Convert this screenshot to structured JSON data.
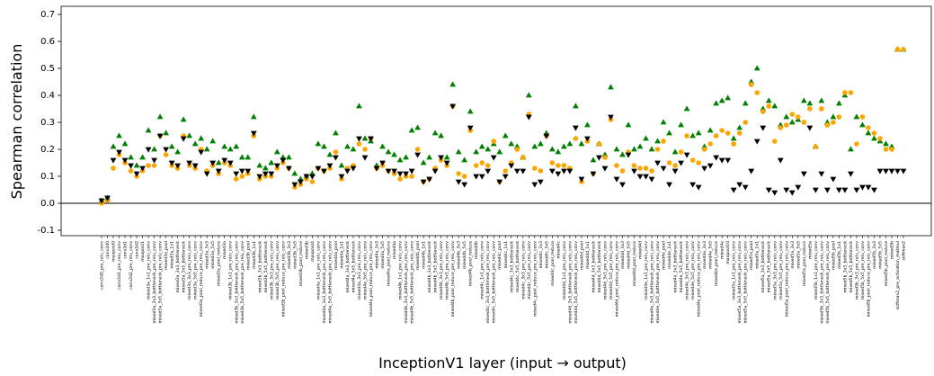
{
  "chart_data": {
    "type": "scatter",
    "xlabel": "InceptionV1 layer (input → output)",
    "ylabel": "Spearman correlation",
    "ylim": [
      -0.12,
      0.73
    ],
    "yticks": [
      -0.1,
      {
        "value": 0,
        "label": "0.0"
      },
      0.1,
      0.2,
      0.3,
      0.4,
      0.5,
      0.6,
      0.7
    ],
    "hline": 0,
    "categories": [
      "conv2d0_pre_relu_conv",
      "conv2d0",
      "maxpool0",
      "conv2d1_pre_relu_conv",
      "conv2d1",
      "conv2d2_pre_relu_conv",
      "conv2d2",
      "maxpool1",
      "mixed3a_1x1_pre_relu_conv",
      "mixed3a_3x3_bottleneck_pre_relu_conv",
      "mixed3a_5x5_bottleneck_pre_relu_conv",
      "mixed3a_pool",
      "mixed3a_1x1",
      "mixed3a_3x3_bottleneck",
      "mixed3a_5x5_bottleneck",
      "mixed3a_3x3_pre_relu_conv",
      "mixed3a_5x5_pre_relu_conv",
      "mixed3a_pool_reduce_pre_relu_conv",
      "mixed3a_3x3",
      "mixed3a_5x5",
      "mixed3a_pool_reduce",
      "mixed3a",
      "mixed3b_1x1_pre_relu_conv",
      "mixed3b_3x3_bottleneck_pre_relu_conv",
      "mixed3b_5x5_bottleneck_pre_relu_conv",
      "mixed3b_pool",
      "mixed3b_1x1",
      "mixed3b_3x3_bottleneck",
      "mixed3b_5x5_bottleneck",
      "mixed3b_3x3_pre_relu_conv",
      "mixed3b_5x5_pre_relu_conv",
      "mixed3b_pool_reduce_pre_relu_conv",
      "mixed3b_3x3",
      "mixed3b_5x5",
      "mixed3b_pool_reduce",
      "mixed3b",
      "maxpool4",
      "mixed4a_1x1_pre_relu_conv",
      "mixed4a_3x3_bottleneck_pre_relu_conv",
      "mixed4a_5x5_bottleneck_pre_relu_conv",
      "mixed4a_pool",
      "mixed4a_1x1",
      "mixed4a_3x3_bottleneck",
      "mixed4a_5x5_bottleneck",
      "mixed4a_3x3_pre_relu_conv",
      "mixed4a_5x5_pre_relu_conv",
      "mixed4a_pool_reduce_pre_relu_conv",
      "mixed4a_3x3",
      "mixed4a_5x5",
      "mixed4a_pool_reduce",
      "mixed4a",
      "mixed4b_1x1_pre_relu_conv",
      "mixed4b_3x3_bottleneck_pre_relu_conv",
      "mixed4b_5x5_bottleneck_pre_relu_conv",
      "mixed4b_pool",
      "mixed4b_1x1",
      "mixed4b_3x3_bottleneck",
      "mixed4b_5x5_bottleneck",
      "mixed4b_3x3_pre_relu_conv",
      "mixed4b_5x5_pre_relu_conv",
      "mixed4b_pool_reduce_pre_relu_conv",
      "mixed4b_3x3",
      "mixed4b_5x5",
      "mixed4b_pool_reduce",
      "mixed4b",
      "mixed4c_1x1_pre_relu_conv",
      "mixed4c_3x3_bottleneck_pre_relu_conv",
      "mixed4c_5x5_bottleneck_pre_relu_conv",
      "mixed4c_pool",
      "mixed4c_1x1",
      "mixed4c_3x3_bottleneck",
      "mixed4c_5x5_bottleneck",
      "mixed4c_3x3_pre_relu_conv",
      "mixed4c_5x5_pre_relu_conv",
      "mixed4c_pool_reduce_pre_relu_conv",
      "mixed4c_3x3",
      "mixed4c_5x5",
      "mixed4c_pool_reduce",
      "mixed4c",
      "mixed4d_1x1_pre_relu_conv",
      "mixed4d_3x3_bottleneck_pre_relu_conv",
      "mixed4d_5x5_bottleneck_pre_relu_conv",
      "mixed4d_pool",
      "mixed4d_1x1",
      "mixed4d_3x3_bottleneck",
      "mixed4d_5x5_bottleneck",
      "mixed4d_3x3_pre_relu_conv",
      "mixed4d_5x5_pre_relu_conv",
      "mixed4d_pool_reduce_pre_relu_conv",
      "mixed4d_3x3",
      "mixed4d_5x5",
      "mixed4d_pool_reduce",
      "mixed4d",
      "mixed4e_1x1_pre_relu_conv",
      "mixed4e_3x3_bottleneck_pre_relu_conv",
      "mixed4e_5x5_bottleneck_pre_relu_conv",
      "mixed4e_pool",
      "mixed4e_1x1",
      "mixed4e_3x3_bottleneck",
      "mixed4e_5x5_bottleneck",
      "mixed4e_3x3_pre_relu_conv",
      "mixed4e_5x5_pre_relu_conv",
      "mixed4e_pool_reduce_pre_relu_conv",
      "mixed4e_3x3",
      "mixed4e_5x5",
      "mixed4e_pool_reduce",
      "mixed4e",
      "maxpool10",
      "mixed5a_1x1_pre_relu_conv",
      "mixed5a_3x3_bottleneck_pre_relu_conv",
      "mixed5a_5x5_bottleneck_pre_relu_conv",
      "mixed5a_pool",
      "mixed5a_1x1",
      "mixed5a_3x3_bottleneck",
      "mixed5a_5x5_bottleneck",
      "mixed5a_3x3_pre_relu_conv",
      "mixed5a_5x5_pre_relu_conv",
      "mixed5a_pool_reduce_pre_relu_conv",
      "mixed5a_3x3",
      "mixed5a_5x5",
      "mixed5a_pool_reduce",
      "mixed5a",
      "mixed5b_1x1_pre_relu_conv",
      "mixed5b_3x3_bottleneck_pre_relu_conv",
      "mixed5b_5x5_bottleneck_pre_relu_conv",
      "mixed5b_pool",
      "mixed5b_1x1",
      "mixed5b_3x3_bottleneck",
      "mixed5b_5x5_bottleneck",
      "mixed5b_3x3_pre_relu_conv",
      "mixed5b_5x5_pre_relu_conv",
      "mixed5b_pool_reduce_pre_relu_conv",
      "mixed5b_3x3",
      "mixed5b_5x5",
      "mixed5b_pool_reduce",
      "mixed5b",
      "softmax2_pre_activation_matmul",
      "softmax2"
    ],
    "series": [
      {
        "color": "#008000",
        "marker": "triangle-up",
        "values": [
          0.01,
          0.02,
          0.21,
          0.25,
          0.22,
          0.17,
          0.14,
          0.17,
          0.27,
          0.2,
          0.32,
          0.26,
          0.21,
          0.19,
          0.31,
          0.25,
          0.22,
          0.24,
          0.2,
          0.23,
          0.15,
          0.21,
          0.2,
          0.21,
          0.17,
          0.17,
          0.32,
          0.14,
          0.13,
          0.15,
          0.19,
          0.17,
          0.17,
          0.11,
          0.09,
          0.1,
          0.11,
          0.22,
          0.21,
          0.18,
          0.26,
          0.14,
          0.21,
          0.2,
          0.36,
          0.24,
          0.23,
          0.14,
          0.21,
          0.19,
          0.18,
          0.16,
          0.17,
          0.27,
          0.28,
          0.15,
          0.17,
          0.26,
          0.25,
          0.17,
          0.44,
          0.19,
          0.16,
          0.34,
          0.19,
          0.21,
          0.2,
          0.22,
          0.19,
          0.25,
          0.22,
          0.21,
          0.17,
          0.4,
          0.21,
          0.22,
          0.26,
          0.2,
          0.19,
          0.21,
          0.22,
          0.36,
          0.22,
          0.29,
          0.16,
          0.22,
          0.18,
          0.43,
          0.2,
          0.18,
          0.29,
          0.2,
          0.21,
          0.24,
          0.2,
          0.23,
          0.3,
          0.26,
          0.19,
          0.29,
          0.35,
          0.25,
          0.26,
          0.21,
          0.27,
          0.37,
          0.38,
          0.39,
          0.24,
          0.28,
          0.37,
          0.45,
          0.5,
          0.35,
          0.38,
          0.36,
          0.29,
          0.32,
          0.3,
          0.31,
          0.38,
          0.37,
          0.21,
          0.38,
          0.3,
          0.32,
          0.37,
          0.4,
          0.2,
          0.32,
          0.29,
          0.26,
          0.24,
          0.23,
          0.22,
          0.21,
          0.57,
          0.57
        ]
      },
      {
        "color": "#ffa500",
        "marker": "circle",
        "values": [
          0.0,
          0.01,
          0.13,
          0.18,
          0.15,
          0.12,
          0.1,
          0.12,
          0.14,
          0.14,
          0.25,
          0.18,
          0.14,
          0.13,
          0.25,
          0.14,
          0.13,
          0.2,
          0.12,
          0.14,
          0.11,
          0.15,
          0.14,
          0.09,
          0.1,
          0.11,
          0.25,
          0.09,
          0.1,
          0.1,
          0.13,
          0.15,
          0.13,
          0.06,
          0.07,
          0.09,
          0.08,
          0.13,
          0.12,
          0.13,
          0.19,
          0.09,
          0.13,
          0.14,
          0.22,
          0.2,
          0.24,
          0.13,
          0.14,
          0.12,
          0.11,
          0.09,
          0.1,
          0.1,
          0.2,
          0.08,
          0.09,
          0.13,
          0.16,
          0.14,
          0.36,
          0.11,
          0.1,
          0.27,
          0.14,
          0.15,
          0.14,
          0.23,
          0.08,
          0.12,
          0.15,
          0.2,
          0.17,
          0.33,
          0.13,
          0.12,
          0.25,
          0.15,
          0.14,
          0.14,
          0.13,
          0.24,
          0.08,
          0.23,
          0.11,
          0.22,
          0.17,
          0.31,
          0.14,
          0.12,
          0.19,
          0.14,
          0.13,
          0.13,
          0.12,
          0.2,
          0.23,
          0.15,
          0.14,
          0.19,
          0.25,
          0.16,
          0.15,
          0.2,
          0.22,
          0.25,
          0.27,
          0.26,
          0.22,
          0.26,
          0.3,
          0.44,
          0.41,
          0.34,
          0.36,
          0.23,
          0.28,
          0.29,
          0.33,
          0.32,
          0.3,
          0.35,
          0.21,
          0.35,
          0.29,
          0.3,
          0.32,
          0.41,
          0.41,
          0.22,
          0.32,
          0.28,
          0.26,
          0.24,
          0.2,
          0.2,
          0.57,
          0.57
        ]
      },
      {
        "color": "#000000",
        "marker": "triangle-down",
        "values": [
          0.01,
          0.02,
          0.16,
          0.19,
          0.16,
          0.14,
          0.11,
          0.13,
          0.2,
          0.16,
          0.25,
          0.2,
          0.15,
          0.14,
          0.24,
          0.15,
          0.14,
          0.19,
          0.11,
          0.15,
          0.12,
          0.16,
          0.15,
          0.11,
          0.12,
          0.12,
          0.26,
          0.1,
          0.11,
          0.11,
          0.14,
          0.16,
          0.13,
          0.07,
          0.08,
          0.1,
          0.1,
          0.13,
          0.12,
          0.14,
          0.17,
          0.1,
          0.12,
          0.13,
          0.24,
          0.17,
          0.24,
          0.13,
          0.15,
          0.12,
          0.12,
          0.11,
          0.11,
          0.12,
          0.18,
          0.08,
          0.09,
          0.12,
          0.17,
          0.15,
          0.36,
          0.08,
          0.07,
          0.28,
          0.1,
          0.1,
          0.12,
          0.17,
          0.08,
          0.1,
          0.14,
          0.12,
          0.12,
          0.32,
          0.07,
          0.08,
          0.25,
          0.12,
          0.11,
          0.12,
          0.12,
          0.28,
          0.09,
          0.24,
          0.11,
          0.17,
          0.13,
          0.32,
          0.09,
          0.07,
          0.18,
          0.12,
          0.1,
          0.1,
          0.09,
          0.15,
          0.13,
          0.07,
          0.12,
          0.15,
          0.18,
          0.07,
          0.06,
          0.13,
          0.14,
          0.17,
          0.16,
          0.16,
          0.05,
          0.07,
          0.06,
          0.12,
          0.23,
          0.28,
          0.05,
          0.04,
          0.16,
          0.05,
          0.04,
          0.06,
          0.11,
          0.28,
          0.05,
          0.11,
          0.05,
          0.09,
          0.05,
          0.05,
          0.11,
          0.05,
          0.06,
          0.06,
          0.05,
          0.12,
          0.12,
          0.12,
          0.12,
          0.12
        ]
      }
    ]
  }
}
